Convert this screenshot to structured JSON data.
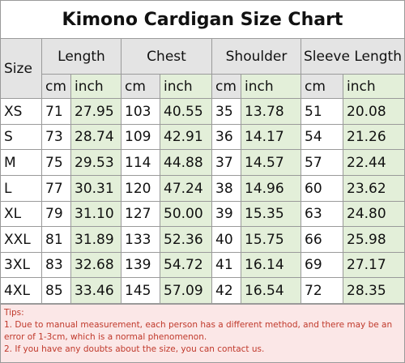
{
  "title": "Kimono Cardigan Size Chart",
  "table": {
    "size_header": "Size",
    "groups": [
      "Length",
      "Chest",
      "Shoulder",
      "Sleeve Length"
    ],
    "units": [
      "cm",
      "inch",
      "cm",
      "inch",
      "cm",
      "inch",
      "cm",
      "inch"
    ],
    "rows": [
      [
        "XS",
        "71",
        "27.95",
        "103",
        "40.55",
        "35",
        "13.78",
        "51",
        "20.08"
      ],
      [
        "S",
        "73",
        "28.74",
        "109",
        "42.91",
        "36",
        "14.17",
        "54",
        "21.26"
      ],
      [
        "M",
        "75",
        "29.53",
        "114",
        "44.88",
        "37",
        "14.57",
        "57",
        "22.44"
      ],
      [
        "L",
        "77",
        "30.31",
        "120",
        "47.24",
        "38",
        "14.96",
        "60",
        "23.62"
      ],
      [
        "XL",
        "79",
        "31.10",
        "127",
        "50.00",
        "39",
        "15.35",
        "63",
        "24.80"
      ],
      [
        "XXL",
        "81",
        "31.89",
        "133",
        "52.36",
        "40",
        "15.75",
        "66",
        "25.98"
      ],
      [
        "3XL",
        "83",
        "32.68",
        "139",
        "54.72",
        "41",
        "16.14",
        "69",
        "27.17"
      ],
      [
        "4XL",
        "85",
        "33.46",
        "145",
        "57.09",
        "42",
        "16.54",
        "72",
        "28.35"
      ]
    ]
  },
  "tips": {
    "label": "Tips:",
    "lines": [
      "1. Due to manual measurement, each person has a different method, and there may be an error of 1-3cm, which is a normal phenomenon.",
      "2. If you have any doubts about the size, you can contact us."
    ]
  }
}
